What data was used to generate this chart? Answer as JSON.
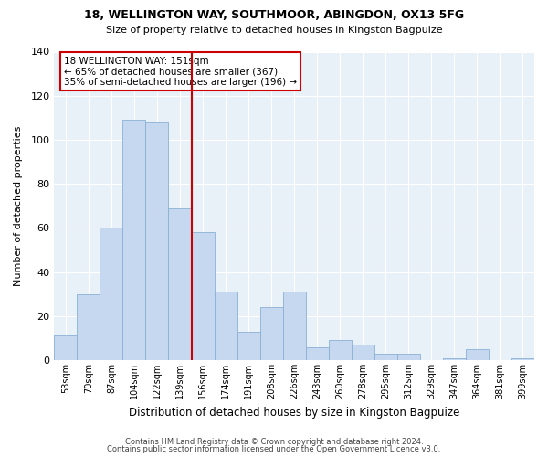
{
  "title1": "18, WELLINGTON WAY, SOUTHMOOR, ABINGDON, OX13 5FG",
  "title2": "Size of property relative to detached houses in Kingston Bagpuize",
  "xlabel": "Distribution of detached houses by size in Kingston Bagpuize",
  "ylabel": "Number of detached properties",
  "bin_labels": [
    "53sqm",
    "70sqm",
    "87sqm",
    "104sqm",
    "122sqm",
    "139sqm",
    "156sqm",
    "174sqm",
    "191sqm",
    "208sqm",
    "226sqm",
    "243sqm",
    "260sqm",
    "278sqm",
    "295sqm",
    "312sqm",
    "329sqm",
    "347sqm",
    "364sqm",
    "381sqm",
    "399sqm"
  ],
  "bar_heights": [
    11,
    30,
    60,
    109,
    108,
    69,
    58,
    31,
    13,
    24,
    31,
    6,
    9,
    7,
    3,
    3,
    0,
    1,
    5,
    0,
    1
  ],
  "bar_color": "#c5d8ef",
  "bar_edge_color": "#8ab0d4",
  "vline_x_index": 6,
  "vline_color": "#cc0000",
  "ylim": [
    0,
    140
  ],
  "yticks": [
    0,
    20,
    40,
    60,
    80,
    100,
    120,
    140
  ],
  "annotation_text_line1": "18 WELLINGTON WAY: 151sqm",
  "annotation_text_line2": "← 65% of detached houses are smaller (367)",
  "annotation_text_line3": "35% of semi-detached houses are larger (196) →",
  "footer_line1": "Contains HM Land Registry data © Crown copyright and database right 2024.",
  "footer_line2": "Contains public sector information licensed under the Open Government Licence v3.0.",
  "plot_bg_color": "#e8f0f8",
  "fig_bg_color": "#ffffff",
  "grid_color": "#ffffff",
  "ann_box_color": "#cc0000"
}
